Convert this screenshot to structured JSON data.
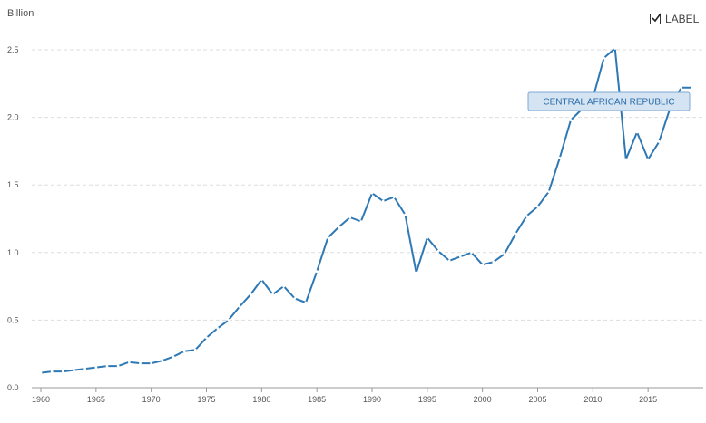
{
  "unit_label": "Billion",
  "label_toggle": {
    "text": "LABEL",
    "checked": true
  },
  "colors": {
    "line": "#2e78b4",
    "grid": "#dddddd",
    "axis": "#999999",
    "annotation_fill": "#d4e4f3",
    "annotation_border": "#7fa9d2",
    "annotation_text": "#2a6aa8"
  },
  "chart_data": {
    "type": "line",
    "ylabel": "Billion",
    "xlim": [
      1960,
      2020
    ],
    "ylim": [
      0,
      2.5
    ],
    "x_ticks": [
      1960,
      1965,
      1970,
      1975,
      1980,
      1985,
      1990,
      1995,
      2000,
      2005,
      2010,
      2015
    ],
    "y_ticks": [
      "0.0",
      "0.5",
      "1.0",
      "1.5",
      "2.0",
      "2.5"
    ],
    "y_tick_values": [
      0,
      0.5,
      1.0,
      1.5,
      2.0,
      2.5
    ],
    "grid": "horizontal dashed",
    "annotation": "CENTRAL AFRICAN REPUBLIC",
    "series": [
      {
        "name": "CENTRAL AFRICAN REPUBLIC",
        "x": [
          1960,
          1961,
          1962,
          1963,
          1964,
          1965,
          1966,
          1967,
          1968,
          1969,
          1970,
          1971,
          1972,
          1973,
          1974,
          1975,
          1976,
          1977,
          1978,
          1979,
          1980,
          1981,
          1982,
          1983,
          1984,
          1985,
          1986,
          1987,
          1988,
          1989,
          1990,
          1991,
          1992,
          1993,
          1994,
          1995,
          1996,
          1997,
          1998,
          1999,
          2000,
          2001,
          2002,
          2003,
          2004,
          2005,
          2006,
          2007,
          2008,
          2009,
          2010,
          2011,
          2012,
          2013,
          2014,
          2015,
          2016,
          2017,
          2018,
          2019
        ],
        "values": [
          0.11,
          0.12,
          0.12,
          0.13,
          0.14,
          0.15,
          0.16,
          0.16,
          0.19,
          0.18,
          0.18,
          0.2,
          0.23,
          0.27,
          0.28,
          0.37,
          0.44,
          0.5,
          0.6,
          0.69,
          0.8,
          0.69,
          0.75,
          0.66,
          0.63,
          0.86,
          1.11,
          1.19,
          1.26,
          1.23,
          1.44,
          1.38,
          1.41,
          1.28,
          0.85,
          1.11,
          1.01,
          0.94,
          0.97,
          1.0,
          0.91,
          0.93,
          0.99,
          1.14,
          1.27,
          1.34,
          1.45,
          1.7,
          1.98,
          2.06,
          2.14,
          2.44,
          2.51,
          1.69,
          1.89,
          1.69,
          1.82,
          2.07,
          2.22,
          2.22
        ]
      }
    ]
  }
}
